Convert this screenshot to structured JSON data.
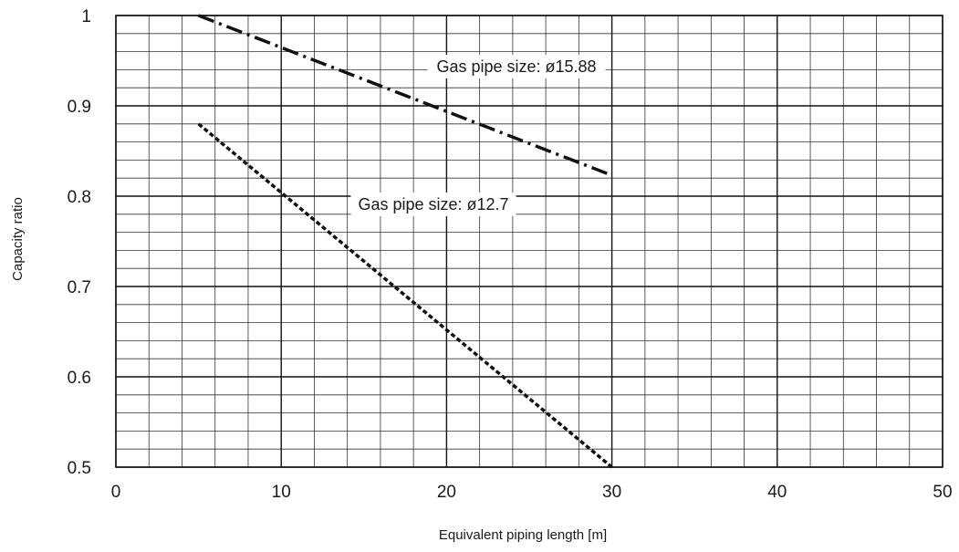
{
  "chart_data": {
    "type": "line",
    "title": "",
    "xlabel": "Equivalent piping length [m]",
    "ylabel": "Capacity ratio",
    "xlim": [
      0,
      50
    ],
    "ylim": [
      0.5,
      1.0
    ],
    "x_ticks": [
      "0",
      "10",
      "20",
      "30",
      "40",
      "50"
    ],
    "y_ticks": [
      "0.5",
      "0.6",
      "0.7",
      "0.8",
      "0.9",
      "1"
    ],
    "grid": true,
    "series": [
      {
        "name": "Gas pipe size: ø15.88",
        "line_style": "dash-dot",
        "points": [
          [
            5,
            1.0
          ],
          [
            30,
            0.823
          ]
        ]
      },
      {
        "name": "Gas pipe size: ø12.7",
        "line_style": "dotted",
        "points": [
          [
            5,
            0.88
          ],
          [
            30,
            0.5
          ]
        ]
      }
    ]
  }
}
